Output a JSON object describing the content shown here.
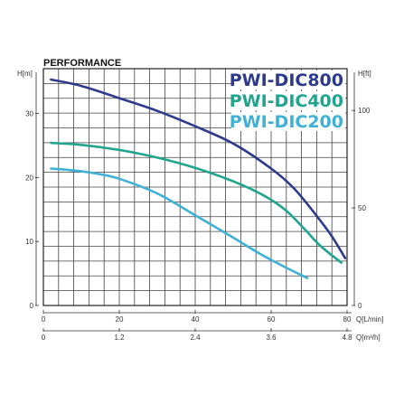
{
  "chart_data": {
    "type": "line",
    "title": "PERFORMANCE",
    "y_left_label": "H[m]",
    "y_right_label": "H[ft]",
    "x_label_primary": "Q[L/min]",
    "x_label_secondary": "Q[m³/h]",
    "xlim": [
      0,
      80
    ],
    "ylim": [
      0,
      37
    ],
    "x_ticks": [
      "0",
      "20",
      "40",
      "60",
      "80"
    ],
    "x_secondary_ticks": [
      "0",
      "1.2",
      "2.4",
      "3.6",
      "4.8"
    ],
    "y_left_ticks": [
      "0",
      "10",
      "20",
      "30"
    ],
    "y_right_ticks": [
      "0",
      "50",
      "100"
    ],
    "grid": true,
    "legend_position": "top-right",
    "series": [
      {
        "name": "PWI-DIC800",
        "color": "#2e3a8c",
        "x": [
          2,
          10,
          20,
          30,
          40,
          50,
          60,
          66,
          72,
          76,
          79.5
        ],
        "y": [
          35.3,
          34.3,
          32.4,
          30.4,
          28.0,
          25.3,
          21.4,
          18.3,
          14.0,
          10.8,
          7.4
        ]
      },
      {
        "name": "PWI-DIC400",
        "color": "#1fa58e",
        "x": [
          2,
          10,
          20,
          30,
          40,
          50,
          58,
          64,
          69,
          73,
          78.5
        ],
        "y": [
          25.4,
          25.1,
          24.3,
          23.1,
          21.5,
          19.4,
          17.2,
          14.8,
          11.8,
          9.3,
          6.7
        ]
      },
      {
        "name": "PWI-DIC200",
        "color": "#3fb0d6",
        "x": [
          2,
          8,
          14,
          20,
          30,
          40,
          50,
          57,
          63,
          69.5
        ],
        "y": [
          21.4,
          21.1,
          20.6,
          19.8,
          17.5,
          14.1,
          10.6,
          8.1,
          6.2,
          4.3
        ]
      }
    ]
  }
}
